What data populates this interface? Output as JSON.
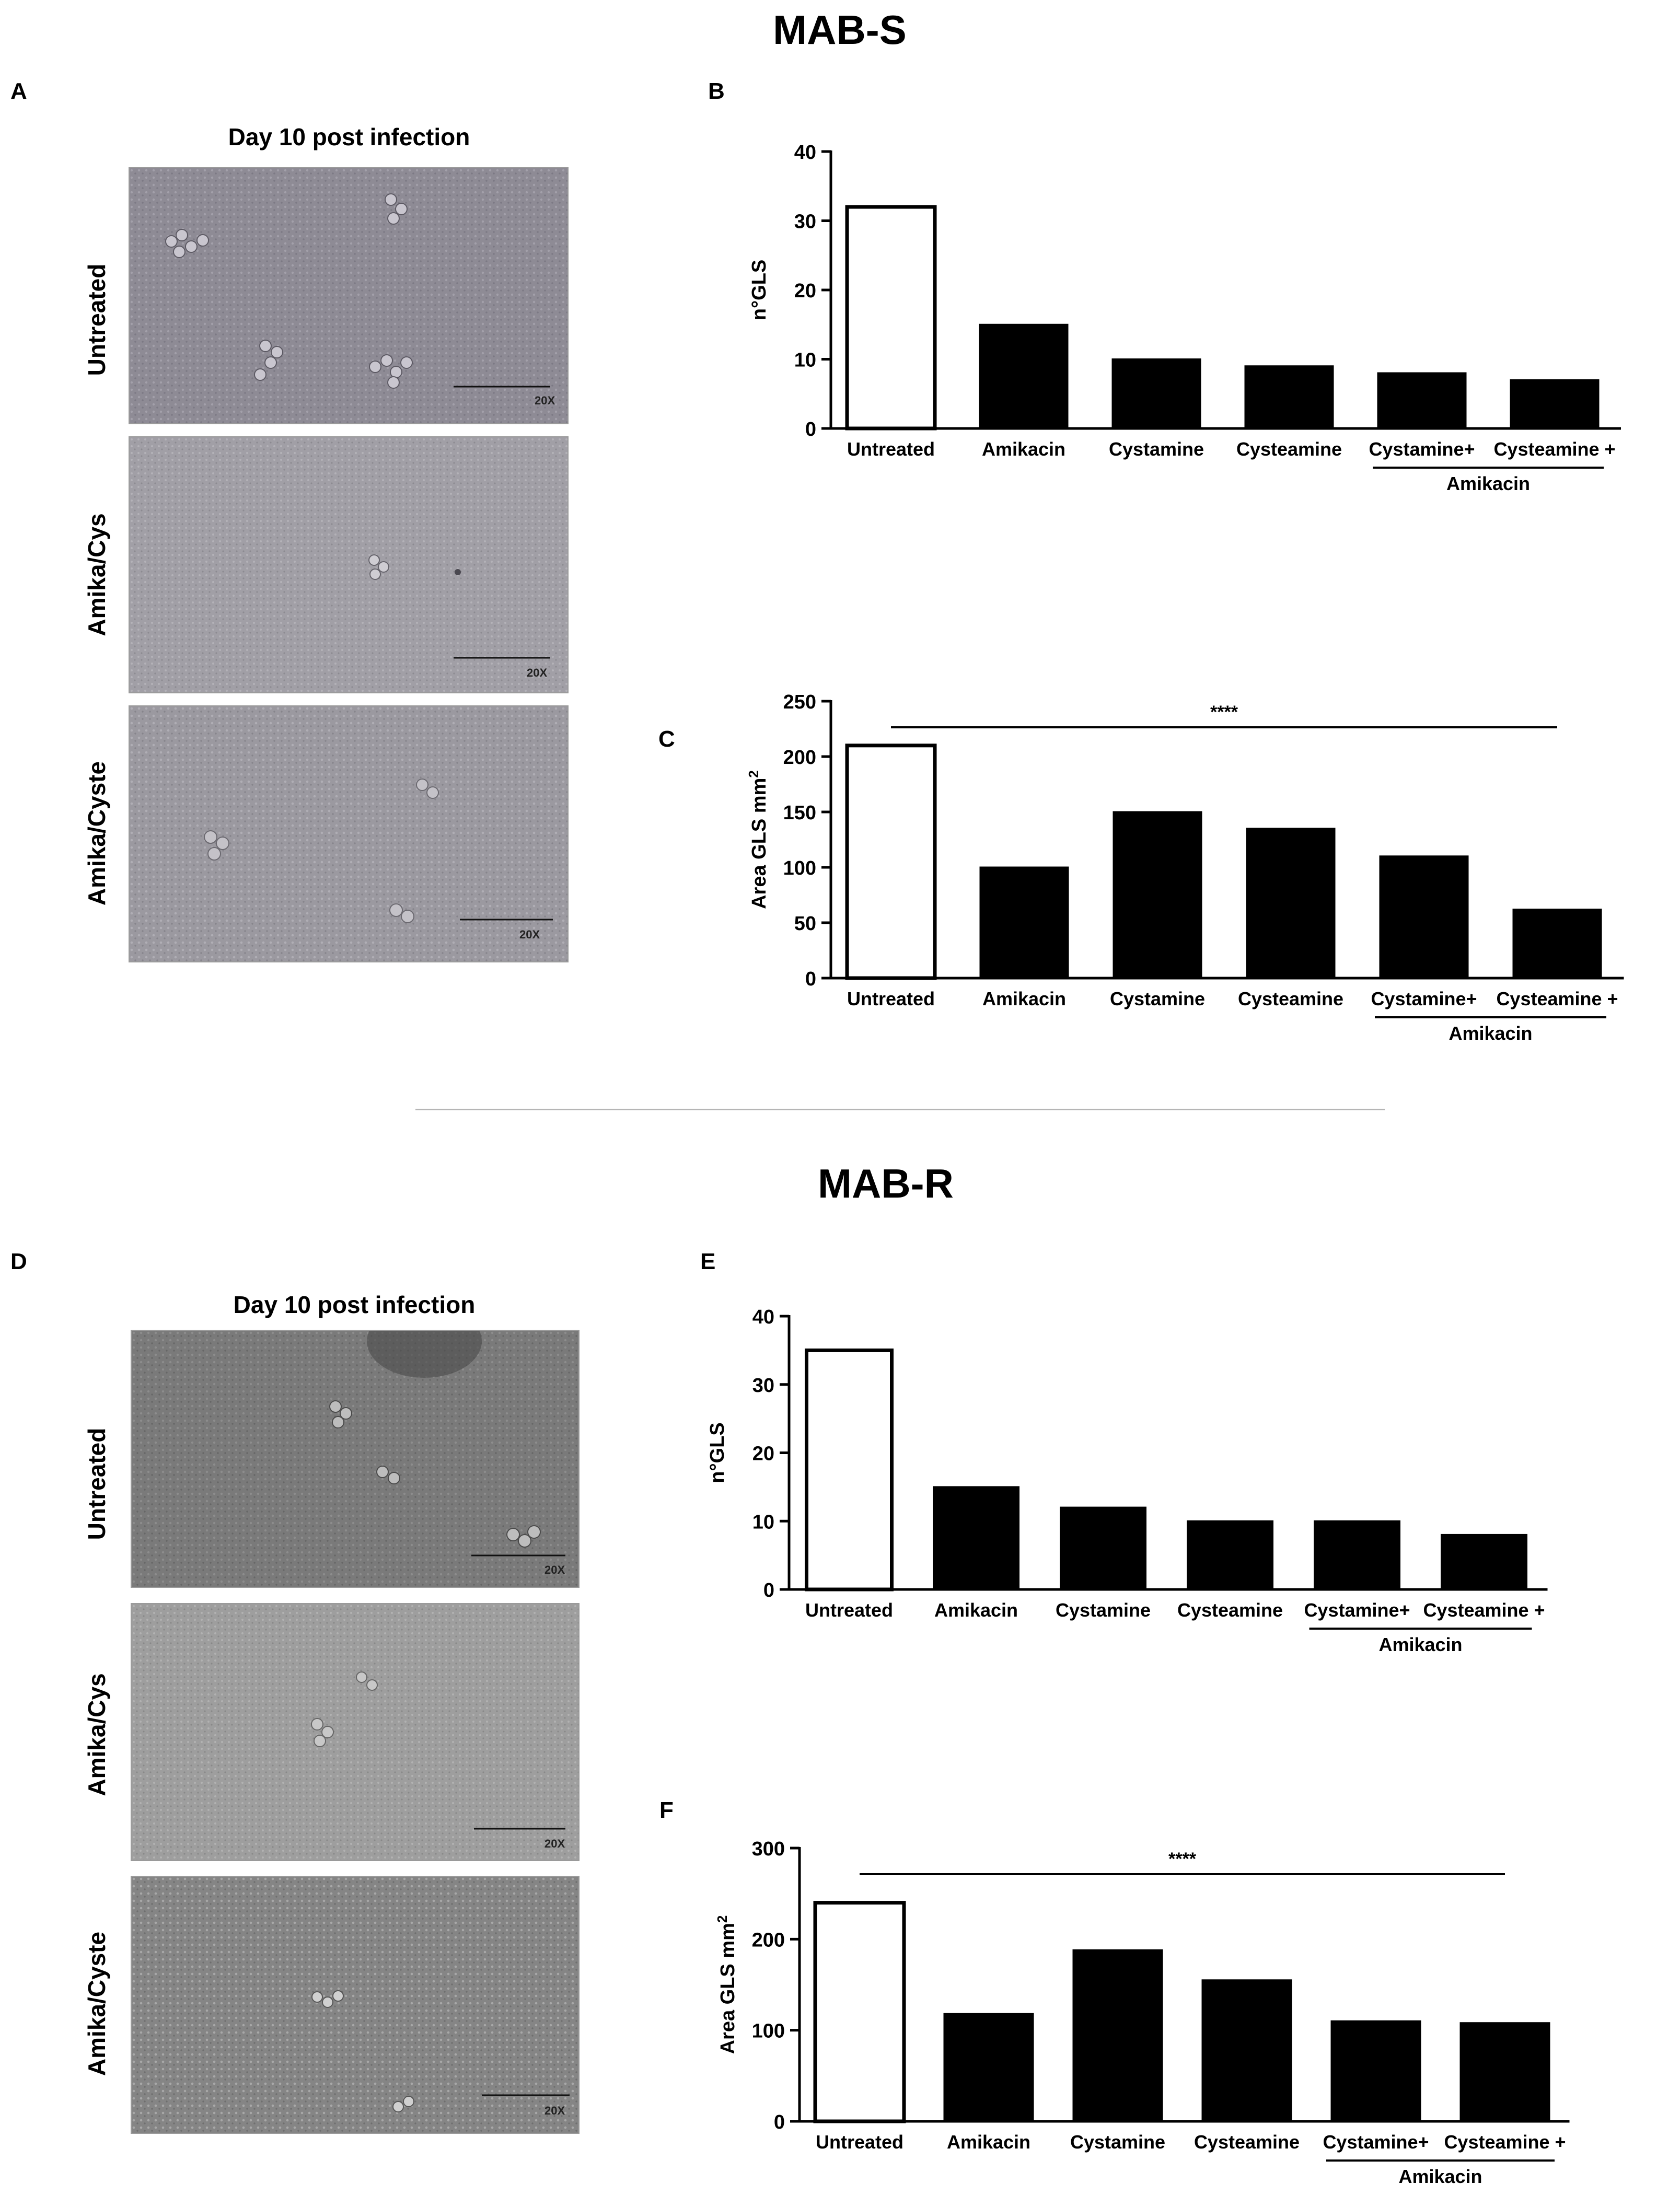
{
  "figure": {
    "sections": [
      {
        "title": "MAB-S",
        "micro_label": "A",
        "micro_title": "Day  10 post infection",
        "rows": [
          "Untreated",
          "Amika/Cys",
          "Amika/Cyste"
        ],
        "scale_label": "20X"
      },
      {
        "title": "MAB-R",
        "micro_label": "D",
        "micro_title": "Day  10 post infection",
        "rows": [
          "Untreated",
          "Amika/Cys",
          "Amika/Cyste"
        ],
        "scale_label": "20X"
      }
    ]
  },
  "chart_data": [
    {
      "panel": "B",
      "type": "bar",
      "categories": [
        "Untreated",
        "Amikacin",
        "Cystamine",
        "Cysteamine",
        "Cystamine+",
        "Cysteamine +"
      ],
      "group_label": "Amikacin",
      "values": [
        32,
        15,
        10,
        9,
        8,
        7
      ],
      "ylabel": "n°GLS",
      "ylim": [
        0,
        40
      ],
      "yticks": [
        0,
        10,
        20,
        30,
        40
      ],
      "significance": "",
      "bar_colors": [
        "#ffffff",
        "#000000",
        "#000000",
        "#000000",
        "#000000",
        "#000000"
      ]
    },
    {
      "panel": "C",
      "type": "bar",
      "categories": [
        "Untreated",
        "Amikacin",
        "Cystamine",
        "Cysteamine",
        "Cystamine+",
        "Cysteamine +"
      ],
      "group_label": "Amikacin",
      "values": [
        210,
        100,
        150,
        135,
        110,
        62
      ],
      "ylabel": "Area GLS mm",
      "ylabel_superscript": "2",
      "ylim": [
        0,
        250
      ],
      "yticks": [
        0,
        50,
        100,
        150,
        200,
        250
      ],
      "significance": "****",
      "bar_colors": [
        "#ffffff",
        "#000000",
        "#000000",
        "#000000",
        "#000000",
        "#000000"
      ]
    },
    {
      "panel": "E",
      "type": "bar",
      "categories": [
        "Untreated",
        "Amikacin",
        "Cystamine",
        "Cysteamine",
        "Cystamine+",
        "Cysteamine +"
      ],
      "group_label": "Amikacin",
      "values": [
        35,
        15,
        12,
        10,
        10,
        8
      ],
      "ylabel": "n°GLS",
      "ylim": [
        0,
        40
      ],
      "yticks": [
        0,
        10,
        20,
        30,
        40
      ],
      "significance": "",
      "bar_colors": [
        "#ffffff",
        "#000000",
        "#000000",
        "#000000",
        "#000000",
        "#000000"
      ]
    },
    {
      "panel": "F",
      "type": "bar",
      "categories": [
        "Untreated",
        "Amikacin",
        "Cystamine",
        "Cysteamine",
        "Cystamine+",
        "Cysteamine +"
      ],
      "group_label": "Amikacin",
      "values": [
        240,
        118,
        188,
        155,
        110,
        108
      ],
      "ylabel": "Area GLS mm",
      "ylabel_superscript": "2",
      "ylim": [
        0,
        300
      ],
      "yticks": [
        0,
        100,
        200,
        300
      ],
      "significance": "****",
      "bar_colors": [
        "#ffffff",
        "#000000",
        "#000000",
        "#000000",
        "#000000",
        "#000000"
      ]
    }
  ]
}
